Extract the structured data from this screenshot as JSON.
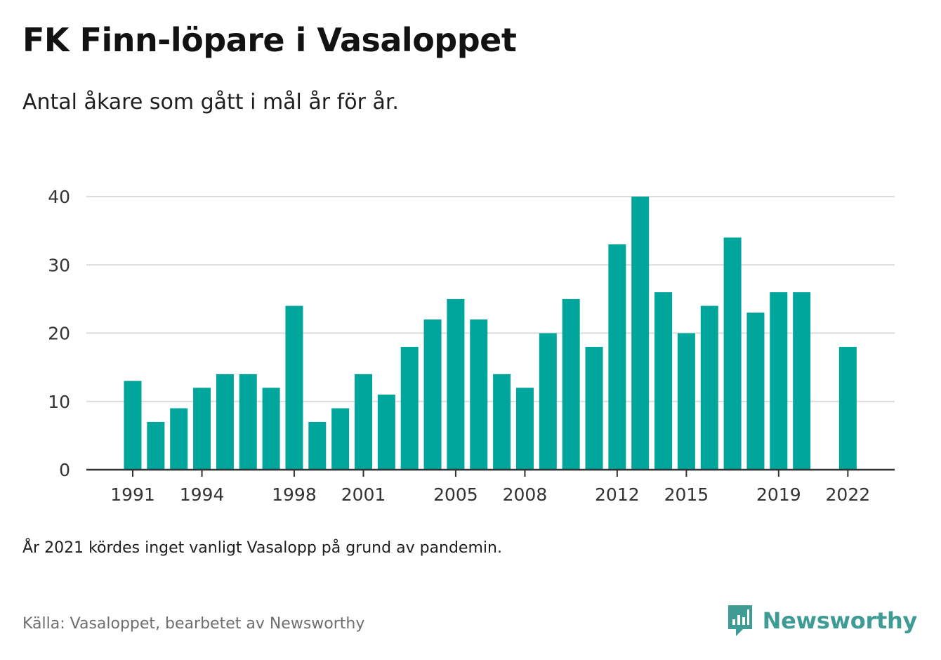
{
  "title": "FK Finn-löpare i Vasaloppet",
  "subtitle": "Antal åkare som gått i mål år för år.",
  "note": "År 2021 kördes inget vanligt Vasalopp på grund av pandemin.",
  "source": "Källa: Vasaloppet, bearbetet av Newsworthy",
  "brand": {
    "name": "Newsworthy",
    "icon": "newsworthy-logo-icon",
    "color": "#3f9c94"
  },
  "chart_data": {
    "type": "bar",
    "bar_color": "#00a59b",
    "x": [
      1991,
      1992,
      1993,
      1994,
      1995,
      1996,
      1997,
      1998,
      1999,
      2000,
      2001,
      2002,
      2003,
      2004,
      2005,
      2006,
      2007,
      2008,
      2009,
      2010,
      2011,
      2012,
      2013,
      2014,
      2015,
      2016,
      2017,
      2018,
      2019,
      2020,
      2021,
      2022
    ],
    "values": [
      13,
      7,
      9,
      12,
      14,
      14,
      12,
      24,
      7,
      9,
      14,
      11,
      18,
      22,
      25,
      22,
      14,
      12,
      20,
      25,
      18,
      33,
      40,
      26,
      20,
      24,
      34,
      23,
      26,
      26,
      null,
      18
    ],
    "x_ticks": [
      1991,
      1994,
      1998,
      2001,
      2005,
      2008,
      2012,
      2015,
      2019,
      2022
    ],
    "y_ticks": [
      0,
      10,
      20,
      30,
      40
    ],
    "ylim": [
      0,
      40
    ],
    "xlabel": "",
    "ylabel": "",
    "grid": true,
    "legend": "none"
  }
}
